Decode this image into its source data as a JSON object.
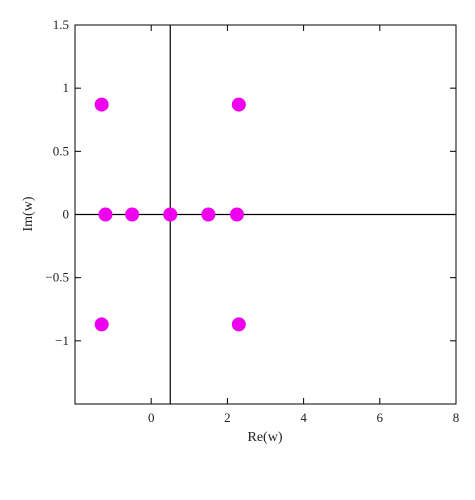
{
  "chart_data": {
    "type": "scatter",
    "title": "",
    "xlabel": "Re(w)",
    "ylabel": "Im(w)",
    "xlim": [
      -2.0,
      8.0
    ],
    "ylim": [
      -1.5,
      1.5
    ],
    "xticks": [
      0,
      2,
      4,
      6,
      8
    ],
    "xtick_labels": [
      "0",
      "2",
      "4",
      "6",
      "8"
    ],
    "yticks": [
      -1,
      -0.5,
      0,
      0.5,
      1,
      1.5
    ],
    "ytick_labels": [
      "−1",
      "−0.5",
      "0",
      "0.5",
      "1",
      "1.5"
    ],
    "reference_lines": {
      "vertical_x": 0.5,
      "horizontal_y": 0
    },
    "grid": false,
    "legend": "none",
    "colors": {
      "points": "#ee00ee",
      "axes": "#000000"
    },
    "series": [
      {
        "points": [
          {
            "x": -1.3,
            "y": 0.87
          },
          {
            "x": 2.3,
            "y": 0.87
          },
          {
            "x": -1.2,
            "y": 0
          },
          {
            "x": -0.5,
            "y": 0
          },
          {
            "x": 0.5,
            "y": 0
          },
          {
            "x": 1.5,
            "y": 0
          },
          {
            "x": 2.25,
            "y": 0
          },
          {
            "x": -1.3,
            "y": -0.87
          },
          {
            "x": 2.3,
            "y": -0.87
          }
        ]
      }
    ]
  }
}
